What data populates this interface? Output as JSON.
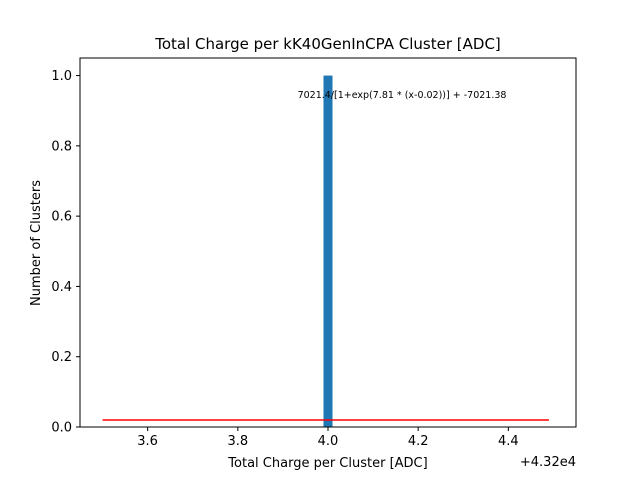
{
  "chart_data": {
    "type": "bar",
    "title": "Total Charge per kK40GenInCPA Cluster [ADC]",
    "xlabel": "Total Charge per Cluster [ADC]",
    "ylabel": "Number of Clusters",
    "x_offset_label": "+4.32e4",
    "xlim": [
      3.45,
      4.55
    ],
    "ylim": [
      0,
      1.05
    ],
    "x_ticks": [
      {
        "value": 3.6,
        "label": "3.6"
      },
      {
        "value": 3.8,
        "label": "3.8"
      },
      {
        "value": 4.0,
        "label": "4.0"
      },
      {
        "value": 4.2,
        "label": "4.2"
      },
      {
        "value": 4.4,
        "label": "4.4"
      }
    ],
    "y_ticks": [
      {
        "value": 0.0,
        "label": "0.0"
      },
      {
        "value": 0.2,
        "label": "0.2"
      },
      {
        "value": 0.4,
        "label": "0.4"
      },
      {
        "value": 0.6,
        "label": "0.6"
      },
      {
        "value": 0.8,
        "label": "0.8"
      },
      {
        "value": 1.0,
        "label": "1.0"
      }
    ],
    "bars": [
      {
        "x_start": 3.99,
        "x_end": 4.01,
        "value": 1
      }
    ],
    "bar_color": "#1f77b4",
    "fit_line": {
      "x": [
        3.5,
        4.49
      ],
      "y": [
        0.02,
        0.02
      ],
      "color": "#ff0000"
    },
    "annotation": "7021.4/[1+exp(7.81 * (x-0.02))] + -7021.38",
    "grid": false
  }
}
